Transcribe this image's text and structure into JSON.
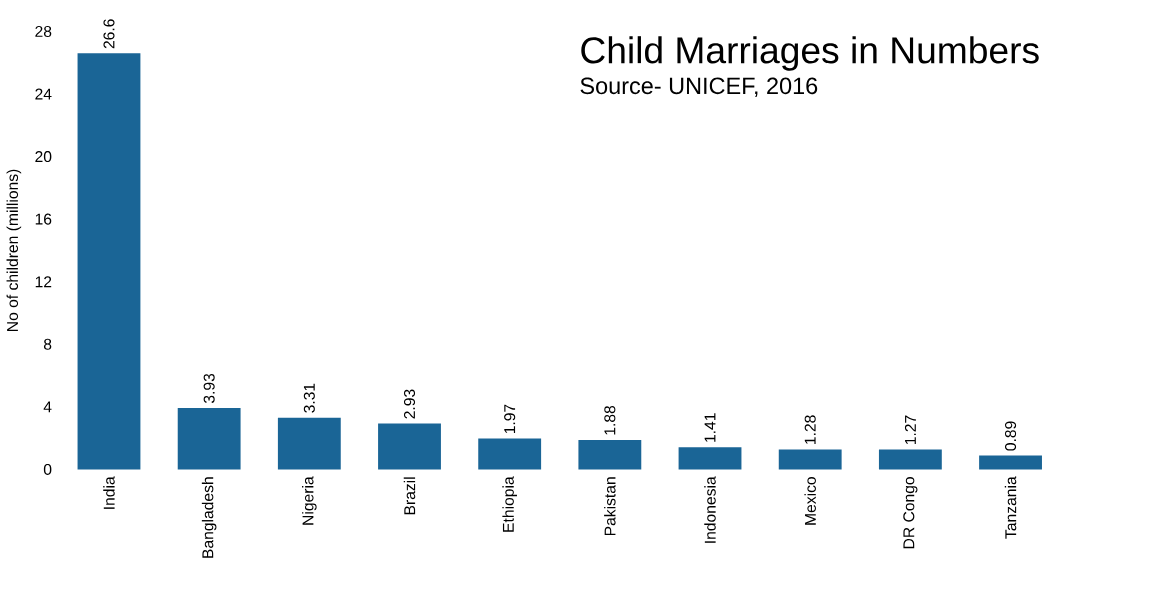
{
  "chart_data": {
    "type": "bar",
    "title": "Child Marriages in Numbers",
    "subtitle": "Source- UNICEF, 2016",
    "ylabel": "No of children (millions)",
    "categories": [
      "India",
      "Bangladesh",
      "Nigeria",
      "Brazil",
      "Ethiopia",
      "Pakistan",
      "Indonesia",
      "Mexico",
      "DR Congo",
      "Tanzania"
    ],
    "values": [
      26.6,
      3.93,
      3.31,
      2.93,
      1.97,
      1.88,
      1.41,
      1.28,
      1.27,
      0.89
    ],
    "color": "#1a6596",
    "ylim": [
      0,
      28
    ],
    "yticks": [
      0,
      4,
      8,
      12,
      16,
      20,
      24,
      28
    ],
    "data_labels": true,
    "grid": false
  }
}
